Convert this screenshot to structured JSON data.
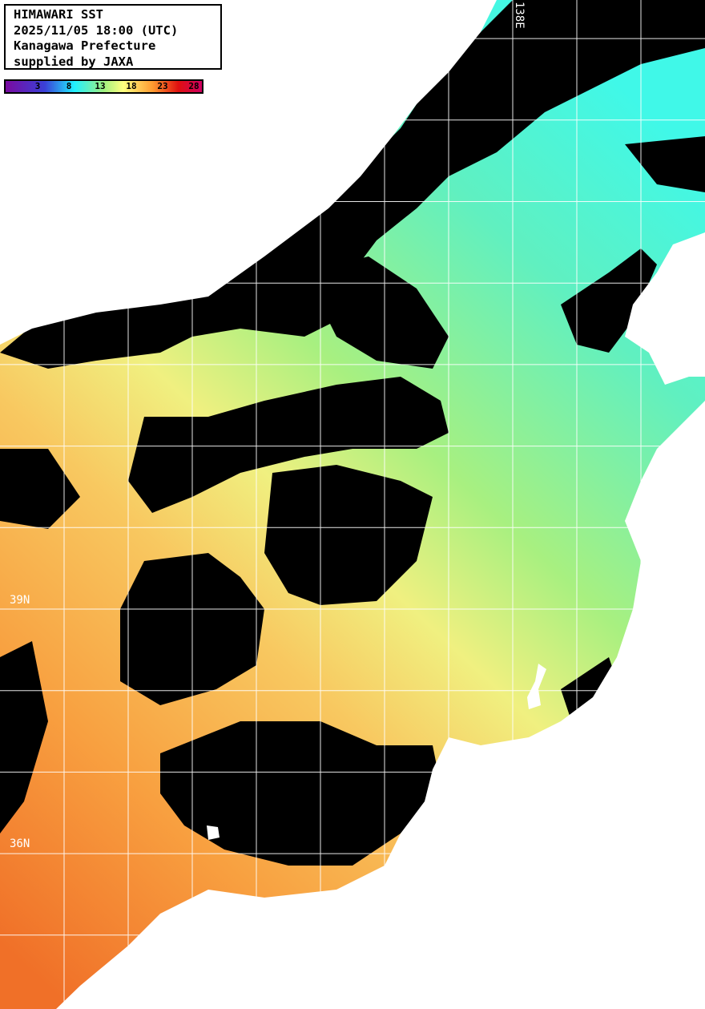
{
  "header": {
    "lines": [
      "HIMAWARI SST",
      "2025/11/05 18:00 (UTC)",
      "Kanagawa Prefecture",
      "supplied by JAXA"
    ]
  },
  "legend": {
    "ticks": [
      "3",
      "8",
      "13",
      "18",
      "23",
      "28"
    ],
    "colors": [
      "#7a0aa0",
      "#3a40d8",
      "#20f0ff",
      "#a0f080",
      "#ffff80",
      "#ff9a30",
      "#e01010",
      "#d00060"
    ]
  },
  "grid": {
    "lat_labels": [
      "39N",
      "36N"
    ],
    "lon_labels": [
      "138E"
    ]
  },
  "colors": {
    "land": "#ffffff",
    "cloud": "#000000",
    "grid": "#ffffff"
  }
}
